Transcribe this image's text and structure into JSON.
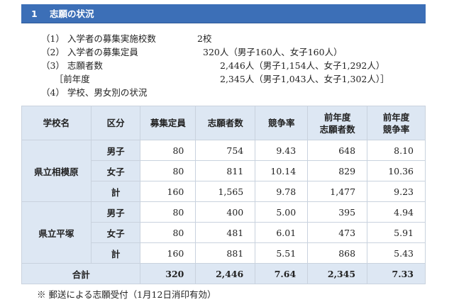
{
  "heading": {
    "number": "1",
    "title": "志願の状況"
  },
  "summary": [
    {
      "label": "（1） 入学者の募集実施校数",
      "value": "2校",
      "value_left": 220
    },
    {
      "label": "（2） 入学者の募集定員",
      "value": "320人（男子160人、女子160人）",
      "value_left": 228
    },
    {
      "label": "（3） 志願者数",
      "value": "2,446人（男子1,154人、女子1,292人）",
      "value_left": 252
    },
    {
      "label": "　　［前年度",
      "value": "2,345人（男子1,043人、女子1,302人）］",
      "value_left": 252
    },
    {
      "label": "（4） 学校、男女別の状況",
      "value": "",
      "value_left": 0
    }
  ],
  "table": {
    "headers": [
      "学校名",
      "区分",
      "募集定員",
      "志願者数",
      "競争率",
      "前年度\n志願者数",
      "前年度\n競争率"
    ],
    "schools": [
      {
        "name": "県立相模原",
        "rows": [
          {
            "division": "男子",
            "capacity": "80",
            "applicants": "754",
            "ratio": "9.43",
            "prev_applicants": "648",
            "prev_ratio": "8.10"
          },
          {
            "division": "女子",
            "capacity": "80",
            "applicants": "811",
            "ratio": "10.14",
            "prev_applicants": "829",
            "prev_ratio": "10.36"
          },
          {
            "division": "計",
            "capacity": "160",
            "applicants": "1,565",
            "ratio": "9.78",
            "prev_applicants": "1,477",
            "prev_ratio": "9.23"
          }
        ]
      },
      {
        "name": "県立平塚",
        "rows": [
          {
            "division": "男子",
            "capacity": "80",
            "applicants": "400",
            "ratio": "5.00",
            "prev_applicants": "395",
            "prev_ratio": "4.94"
          },
          {
            "division": "女子",
            "capacity": "80",
            "applicants": "481",
            "ratio": "6.01",
            "prev_applicants": "473",
            "prev_ratio": "5.91"
          },
          {
            "division": "計",
            "capacity": "160",
            "applicants": "881",
            "ratio": "5.51",
            "prev_applicants": "868",
            "prev_ratio": "5.43"
          }
        ]
      }
    ],
    "total": {
      "label": "合計",
      "capacity": "320",
      "applicants": "2,446",
      "ratio": "7.64",
      "prev_applicants": "2,345",
      "prev_ratio": "7.33"
    }
  },
  "note": "※ 郵送による志願受付（1月12日消印有効）"
}
